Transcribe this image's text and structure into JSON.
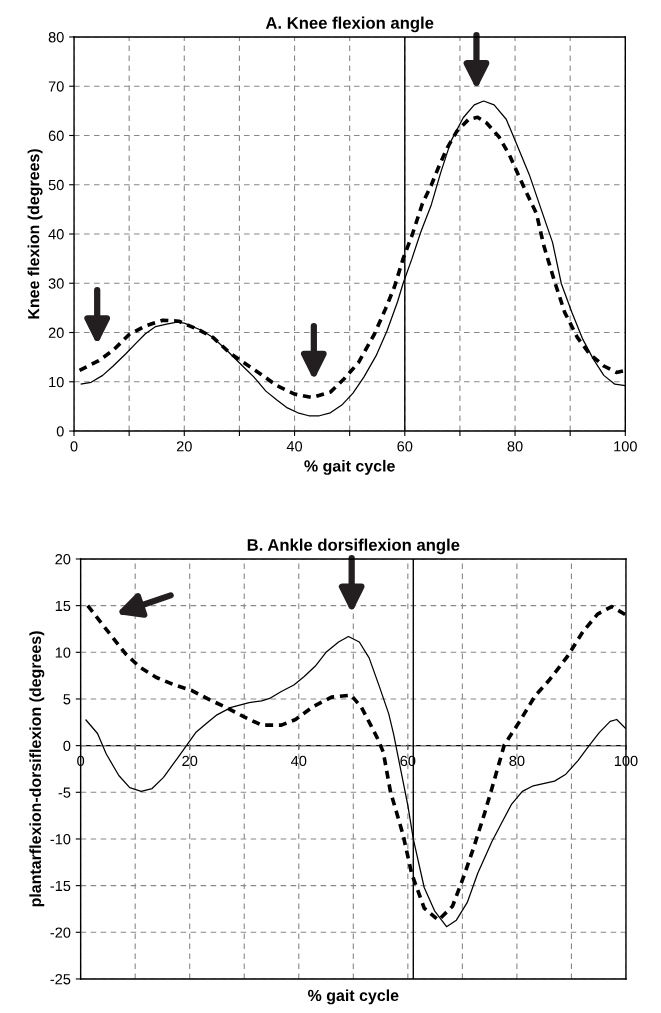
{
  "chart_data": [
    {
      "type": "line",
      "title": "A. Knee flexion angle",
      "xlabel": "% gait cycle",
      "ylabel": "Knee flexion (degrees)",
      "xlim": [
        0,
        100
      ],
      "ylim": [
        0,
        80
      ],
      "xticks": [
        0,
        {
          "value": 10,
          "label": null
        },
        20,
        {
          "value": 30,
          "label": null
        },
        40,
        {
          "value": 50,
          "label": null
        },
        60,
        {
          "value": 70,
          "label": null
        },
        80,
        {
          "value": 90,
          "label": null
        },
        100
      ],
      "yticks": [
        0,
        10,
        20,
        30,
        40,
        50,
        60,
        70,
        80
      ],
      "grid": true,
      "legend": false,
      "series": [
        {
          "color": "#000000",
          "line_style": "solid",
          "x": [
            1.2,
            3.1,
            5.2,
            7.1,
            9.4,
            11.3,
            12.9,
            14.8,
            16.8,
            18.7,
            20,
            23.2,
            25.2,
            27.7,
            30.3,
            32.6,
            34.8,
            36.8,
            38.7,
            40.6,
            42.6,
            44.5,
            46.5,
            48.7,
            50.6,
            52.6,
            54.8,
            56.8,
            58.7,
            59.7,
            61.3,
            62.9,
            64.8,
            66.5,
            68.4,
            70.6,
            72.6,
            74.3,
            76.2,
            78.4,
            80.3,
            82.6,
            84.8,
            86.8,
            88.4,
            90.3,
            92.3,
            94.2,
            96.1,
            98.1,
            100
          ],
          "values": [
            9.5,
            9.9,
            11.3,
            13.2,
            15.7,
            17.9,
            19.7,
            21.2,
            21.7,
            22.1,
            21.9,
            20.4,
            19,
            16.4,
            13.5,
            11,
            8.1,
            6.3,
            4.7,
            3.7,
            3.1,
            3.1,
            3.7,
            5.4,
            7.7,
            11,
            15.3,
            20.4,
            26.3,
            30,
            35,
            40.4,
            45.9,
            52.4,
            58.9,
            63.6,
            66.2,
            67,
            66.2,
            63.3,
            58.2,
            52,
            44.8,
            38.3,
            29.9,
            24.1,
            18.6,
            14.6,
            11.3,
            9.5,
            9.2
          ]
        },
        {
          "color": "#000000",
          "line_style": "dashed",
          "x": [
            1,
            4.5,
            7.1,
            10,
            12.9,
            16.1,
            19,
            22.9,
            25.2,
            28.4,
            31.3,
            34.2,
            36.8,
            40,
            43.2,
            46.5,
            49,
            51.6,
            54.5,
            56.5,
            58.1,
            59.7,
            61.3,
            63.2,
            64.8,
            66.1,
            67.7,
            69.4,
            71.6,
            73.2,
            74.8,
            77.1,
            79,
            80.6,
            81.9,
            83.9,
            85.2,
            87.1,
            89,
            91.3,
            93.5,
            96.1,
            98.4,
            100
          ],
          "values": [
            12.3,
            14.3,
            16.4,
            19.6,
            21.3,
            22.5,
            22.3,
            20.4,
            19,
            15.7,
            13.5,
            11.3,
            9.2,
            7.5,
            6.8,
            7.9,
            10.6,
            13.9,
            19.7,
            24.8,
            29.2,
            35,
            39.7,
            46.2,
            49.9,
            53.5,
            57.5,
            60.8,
            63.3,
            63.7,
            62.6,
            59.7,
            56,
            52,
            48.8,
            44.1,
            37.7,
            30.6,
            24.1,
            19,
            15.7,
            13.2,
            11.9,
            12.3
          ]
        }
      ],
      "ref_lines": [
        {
          "axis": "x",
          "value": 60,
          "color": "#000000",
          "line_style": "solid"
        }
      ]
    },
    {
      "type": "line",
      "title": "B. Ankle dorsiflexion angle",
      "xlabel": "% gait cycle",
      "ylabel": "plantarflexion-dorsiflexion (degrees)",
      "xlim": [
        0,
        100
      ],
      "ylim": [
        -25,
        20
      ],
      "xticks": [
        0,
        {
          "value": 10,
          "label": null
        },
        20,
        {
          "value": 30,
          "label": null
        },
        40,
        {
          "value": 50,
          "label": null
        },
        60,
        {
          "value": 70,
          "label": null
        },
        80,
        {
          "value": 90,
          "label": null
        },
        100
      ],
      "yticks": [
        -25,
        -20,
        -15,
        -10,
        -5,
        0,
        5,
        10,
        15,
        20
      ],
      "grid": true,
      "legend": false,
      "series": [
        {
          "color": "#000000",
          "line_style": "solid",
          "x": [
            0.9,
            3.1,
            4.7,
            7,
            9,
            11.1,
            13.1,
            15.2,
            17.8,
            21.1,
            23.1,
            25,
            27.6,
            30.9,
            33.2,
            34.8,
            36.8,
            39.1,
            41,
            43,
            45,
            47.3,
            49.1,
            51.1,
            52.9,
            54.8,
            56.5,
            57.4,
            58.7,
            60,
            61,
            63,
            64.9,
            67.1,
            68.9,
            70.9,
            72.8,
            75.4,
            77.1,
            79,
            81,
            83,
            86.9,
            88.9,
            91.2,
            93.1,
            95.1,
            97.1,
            98.3,
            100
          ],
          "values": [
            2.8,
            1.3,
            -0.9,
            -3.2,
            -4.5,
            -4.9,
            -4.6,
            -3.4,
            -1.3,
            1.4,
            2.4,
            3.3,
            4.1,
            4.6,
            4.8,
            5.1,
            5.8,
            6.5,
            7.4,
            8.5,
            10,
            11.1,
            11.7,
            11.1,
            9.4,
            6.3,
            3.4,
            1.2,
            -2.6,
            -6.4,
            -10,
            -15.2,
            -17.7,
            -19.4,
            -18.7,
            -16.8,
            -13.7,
            -10.3,
            -8.4,
            -6.3,
            -4.9,
            -4.3,
            -3.8,
            -3.1,
            -1.6,
            -0.1,
            1.4,
            2.6,
            2.8,
            1.8
          ]
        },
        {
          "color": "#000000",
          "line_style": "dashed",
          "x": [
            1.3,
            3.7,
            6,
            8.3,
            10.9,
            13.9,
            17.2,
            20.4,
            23.7,
            26.7,
            29.9,
            33.2,
            36.8,
            39.4,
            42.7,
            46,
            49.6,
            51.5,
            53.2,
            54.5,
            55.5,
            56.8,
            59.1,
            60.7,
            63,
            65.6,
            68.2,
            70.2,
            72.2,
            74.1,
            75.8,
            77.7,
            80.4,
            83.3,
            85.9,
            89.2,
            92.1,
            94.8,
            97.4,
            100
          ],
          "values": [
            15,
            13.2,
            11.5,
            9.8,
            8.4,
            7.3,
            6.5,
            5.9,
            4.9,
            4.1,
            3.1,
            2.2,
            2.2,
            2.8,
            4.2,
            5.2,
            5.4,
            4.1,
            2.2,
            0.7,
            -0.7,
            -4.9,
            -9.5,
            -13.7,
            -17.4,
            -18.7,
            -17.2,
            -14.1,
            -10.7,
            -7.2,
            -3.8,
            0.1,
            2.5,
            5.3,
            7,
            9.5,
            12.2,
            14.1,
            14.9,
            14
          ]
        }
      ],
      "ref_lines": [
        {
          "axis": "x",
          "value": 61,
          "color": "#000000",
          "line_style": "solid"
        }
      ]
    }
  ]
}
